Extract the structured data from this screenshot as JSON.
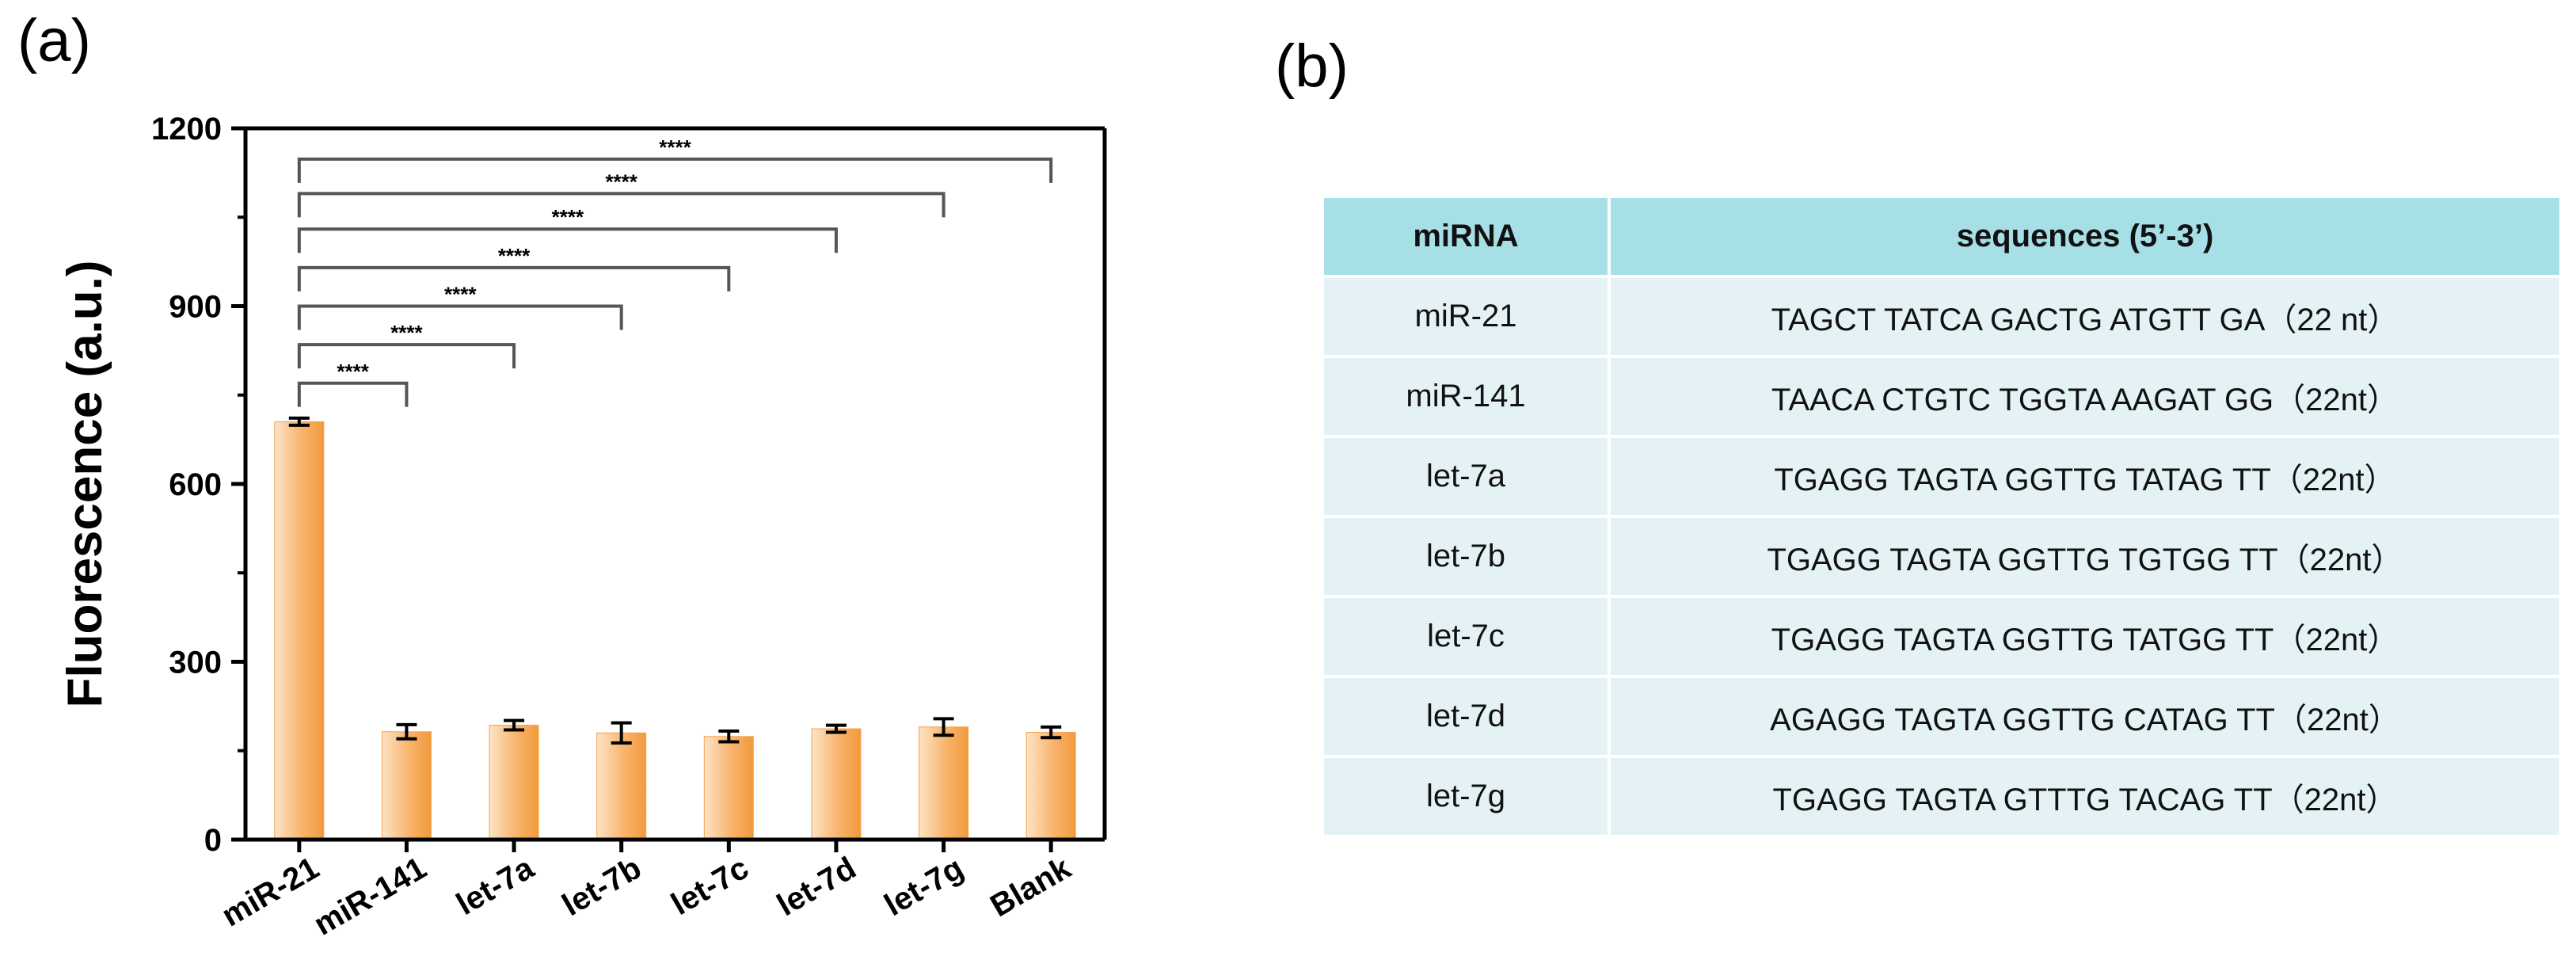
{
  "panels": {
    "a": "(a)",
    "b": "(b)"
  },
  "chart_data": {
    "type": "bar",
    "categories": [
      "miR-21",
      "miR-141",
      "let-7a",
      "let-7b",
      "let-7c",
      "let-7d",
      "let-7g",
      "Blank"
    ],
    "values": [
      705,
      182,
      193,
      180,
      174,
      187,
      190,
      181
    ],
    "errors": [
      6,
      12,
      8,
      17,
      9,
      6,
      14,
      9
    ],
    "ylabel": "Fluorescence (a.u.)",
    "xlabel": "",
    "ylim": [
      0,
      1200
    ],
    "yticks": [
      0,
      300,
      600,
      900,
      1200
    ],
    "bar_color": "#f5a24d",
    "grid": false,
    "significance": [
      {
        "to": "miR-141",
        "label": "****",
        "level": 770
      },
      {
        "to": "let-7a",
        "label": "****",
        "level": 835
      },
      {
        "to": "let-7b",
        "label": "****",
        "level": 900
      },
      {
        "to": "let-7c",
        "label": "****",
        "level": 965
      },
      {
        "to": "let-7d",
        "label": "****",
        "level": 1030
      },
      {
        "to": "let-7g",
        "label": "****",
        "level": 1090
      },
      {
        "to": "Blank",
        "label": "****",
        "level": 1148
      }
    ]
  },
  "table": {
    "headers": [
      "miRNA",
      "sequences (5’-3’)"
    ],
    "rows": [
      {
        "name": "miR-21",
        "seq": "TAGCT TATCA GACTG ATGTT GA（22 nt）"
      },
      {
        "name": "miR-141",
        "seq": "TAACA CTGTC TGGTA AAGAT GG（22nt）"
      },
      {
        "name": "let-7a",
        "seq": "TGAGG TAGTA GGTTG TATAG TT（22nt）"
      },
      {
        "name": "let-7b",
        "seq": "TGAGG TAGTA GGTTG TGTGG TT（22nt）"
      },
      {
        "name": "let-7c",
        "seq": "TGAGG TAGTA GGTTG TATGG TT（22nt）"
      },
      {
        "name": "let-7d",
        "seq": "AGAGG TAGTA GGTTG CATAG TT（22nt）"
      },
      {
        "name": "let-7g",
        "seq": "TGAGG TAGTA GTTTG TACAG TT（22nt）"
      }
    ]
  }
}
